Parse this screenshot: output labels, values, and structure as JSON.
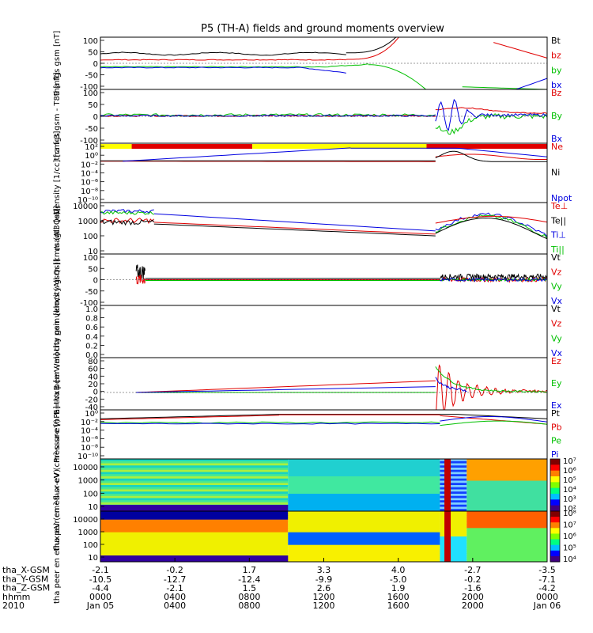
{
  "title": "P5 (TH-A) fields and ground moments overview",
  "time_axis": {
    "ticks": [
      "Jan 05",
      "0400",
      "0800",
      "1200",
      "1600",
      "2000",
      "Jan 06"
    ],
    "hhmm": [
      "0000",
      "0400",
      "0800",
      "1200",
      "1600",
      "2000",
      "0000"
    ],
    "row_labels": [
      "tha_X-GSM",
      "tha_Y-GSM",
      "tha_Z-GSM",
      "hhmm",
      "2010"
    ],
    "x_gsm": [
      "-2.1",
      "-0.2",
      "1.7",
      "3.3",
      "4.0",
      "-2.7",
      "-3.5"
    ],
    "y_gsm": [
      "-10.5",
      "-12.7",
      "-12.4",
      "-9.9",
      "-5.0",
      "-0.2",
      "-7.1"
    ],
    "z_gsm": [
      "-4.4",
      "-2.1",
      "1.5",
      "2.6",
      "1.9",
      "-1.6",
      "-4.2"
    ]
  },
  "chart_data": [
    {
      "type": "line",
      "panel": "fgs",
      "ylabel": "tha fgs gsm [nT]",
      "ylim": [
        -100,
        100
      ],
      "yticks": [
        "100",
        "50",
        "0",
        "-50",
        "-100"
      ],
      "legend": [
        {
          "name": "Bt",
          "color": "#000000"
        },
        {
          "name": "bz",
          "color": "#e00000"
        },
        {
          "name": "by",
          "color": "#00c000"
        },
        {
          "name": "bx",
          "color": "#0000e0"
        }
      ]
    },
    {
      "type": "line",
      "panel": "fgs_t89",
      "ylabel": "tha fgs gsm - T89 [nT]",
      "ylim": [
        -100,
        100
      ],
      "yticks": [
        "100",
        "50",
        "0",
        "-50",
        "-100"
      ],
      "legend": [
        {
          "name": "Bz",
          "color": "#e00000"
        },
        {
          "name": "By",
          "color": "#00c000"
        },
        {
          "name": "Bx",
          "color": "#0000e0"
        }
      ]
    },
    {
      "type": "line",
      "panel": "density",
      "ylabel": "Density [1/cc] [cm-3]",
      "yscale": "log",
      "yticks": [
        "10²",
        "10⁰",
        "10⁻²",
        "10⁻⁴",
        "10⁻⁶",
        "10⁻⁸",
        "10⁻¹⁰"
      ],
      "legend": [
        {
          "name": "Ne",
          "color": "#e00000"
        },
        {
          "name": "Ni",
          "color": "#000000"
        },
        {
          "name": "Npot",
          "color": "#0000e0"
        }
      ]
    },
    {
      "type": "line",
      "panel": "temperature",
      "ylabel": "magt3 [eV]",
      "yscale": "log",
      "yticks": [
        "10000",
        "1000",
        "100",
        "10"
      ],
      "legend": [
        {
          "name": "Te⊥",
          "color": "#e00000"
        },
        {
          "name": "Te||",
          "color": "#000000"
        },
        {
          "name": "Ti⊥",
          "color": "#0000e0"
        },
        {
          "name": "Ti||",
          "color": "#00c000"
        }
      ]
    },
    {
      "type": "line",
      "panel": "peir_velocity",
      "ylabel": "tha peir velocity gsm [km/s (All Qs)]",
      "ylim": [
        -100,
        100
      ],
      "yticks": [
        "100",
        "50",
        "0",
        "-50",
        "-100"
      ],
      "legend": [
        {
          "name": "Vt",
          "color": "#000000"
        },
        {
          "name": "Vz",
          "color": "#e00000"
        },
        {
          "name": "Vy",
          "color": "#00c000"
        },
        {
          "name": "Vx",
          "color": "#0000e0"
        }
      ]
    },
    {
      "type": "line",
      "panel": "peer_velocity",
      "ylabel": "tha peer velocity gsm [km/s (All Qs)]",
      "ylim": [
        0,
        1
      ],
      "yticks": [
        "1.0",
        "0.8",
        "0.6",
        "0.4",
        "0.2",
        "0.0"
      ],
      "legend": [
        {
          "name": "Vt",
          "color": "#000000"
        },
        {
          "name": "Vz",
          "color": "#e00000"
        },
        {
          "name": "Vy",
          "color": "#00c000"
        },
        {
          "name": "Vx",
          "color": "#0000e0"
        }
      ]
    },
    {
      "type": "line",
      "panel": "efield",
      "ylabel": "E=-VxB [mV/m]",
      "ylim": [
        -40,
        80
      ],
      "yticks": [
        "80",
        "60",
        "40",
        "20",
        "0",
        "-20",
        "-40"
      ],
      "legend": [
        {
          "name": "Ez",
          "color": "#e00000"
        },
        {
          "name": "Ey",
          "color": "#00c000"
        },
        {
          "name": "Ex",
          "color": "#0000e0"
        }
      ]
    },
    {
      "type": "line",
      "panel": "pressure",
      "ylabel": "Pressure [nPa]",
      "yscale": "log",
      "yticks": [
        "10⁰",
        "10⁻²",
        "10⁻⁴",
        "10⁻⁶",
        "10⁻⁸",
        "10⁻¹⁰"
      ],
      "legend": [
        {
          "name": "Pt",
          "color": "#000000"
        },
        {
          "name": "Pb",
          "color": "#e00000"
        },
        {
          "name": "Pe",
          "color": "#00c000"
        },
        {
          "name": "Pi",
          "color": "#0000e0"
        }
      ]
    },
    {
      "type": "heatmap",
      "panel": "peir_spectrogram",
      "ylabel": "tha peir en eflux eV (cm²-s-sr-eV)",
      "yscale": "log",
      "yticks": [
        "10000",
        "1000",
        "100",
        "10"
      ],
      "colorbar_ticks": [
        "10⁷",
        "10⁶",
        "10⁵",
        "10⁴",
        "10³",
        "10²"
      ]
    },
    {
      "type": "heatmap",
      "panel": "peer_spectrogram",
      "ylabel": "tha peer en eflux eV (cm²-s-sr-eV)",
      "yscale": "log",
      "yticks": [
        "10000",
        "1000",
        "100",
        "10"
      ],
      "colorbar_ticks": [
        "10⁸",
        "10⁷",
        "10⁶",
        "10⁵",
        "10⁴"
      ]
    }
  ]
}
